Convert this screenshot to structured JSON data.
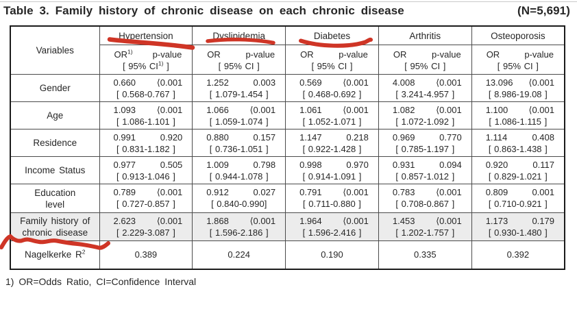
{
  "title": {
    "text": "Table 3. Family history of chronic disease on each chronic disease",
    "n_label": "(N=5,691)"
  },
  "colors": {
    "annotation_red": "#cf3526",
    "row_highlight": "#ececec"
  },
  "table": {
    "variables_header": "Variables",
    "diseases": [
      "Hypertension",
      "Dyslipidemia",
      "Diabetes",
      "Arthritis",
      "Osteoporosis"
    ],
    "subheader": {
      "or": "OR",
      "p": "p-value",
      "ci": "[ 95% CI",
      "ci_close": " ]",
      "sup_first": "1)"
    },
    "rows": [
      {
        "label": "Gender",
        "cells": [
          {
            "or": "0.660",
            "p": "⟨0.001",
            "ci": "[ 0.568-0.767 ]"
          },
          {
            "or": "1.252",
            "p": "0.003",
            "ci": "[ 1.079-1.454 ]"
          },
          {
            "or": "0.569",
            "p": "⟨0.001",
            "ci": "[ 0.468-0.692 ]"
          },
          {
            "or": "4.008",
            "p": "⟨0.001",
            "ci": "[ 3.241-4.957 ]"
          },
          {
            "or": "13.096",
            "p": "⟨0.001",
            "ci": "[ 8.986-19.08 ]"
          }
        ]
      },
      {
        "label": "Age",
        "cells": [
          {
            "or": "1.093",
            "p": "⟨0.001",
            "ci": "[ 1.086-1.101 ]"
          },
          {
            "or": "1.066",
            "p": "⟨0.001",
            "ci": "[ 1.059-1.074 ]"
          },
          {
            "or": "1.061",
            "p": "⟨0.001",
            "ci": "[ 1.052-1.071 ]"
          },
          {
            "or": "1.082",
            "p": "⟨0.001",
            "ci": "[ 1.072-1.092 ]"
          },
          {
            "or": "1.100",
            "p": "⟨0.001",
            "ci": "[ 1.086-1.115 ]"
          }
        ]
      },
      {
        "label": "Residence",
        "cells": [
          {
            "or": "0.991",
            "p": "0.920",
            "ci": "[ 0.831-1.182 ]"
          },
          {
            "or": "0.880",
            "p": "0.157",
            "ci": "[ 0.736-1.051 ]"
          },
          {
            "or": "1.147",
            "p": "0.218",
            "ci": "[ 0.922-1.428 ]"
          },
          {
            "or": "0.969",
            "p": "0.770",
            "ci": "[ 0.785-1.197 ]"
          },
          {
            "or": "1.114",
            "p": "0.408",
            "ci": "[ 0.863-1.438 ]"
          }
        ]
      },
      {
        "label": "Income Status",
        "cells": [
          {
            "or": "0.977",
            "p": "0.505",
            "ci": "[ 0.913-1.046 ]"
          },
          {
            "or": "1.009",
            "p": "0.798",
            "ci": "[ 0.944-1.078 ]"
          },
          {
            "or": "0.998",
            "p": "0.970",
            "ci": "[ 0.914-1.091 ]"
          },
          {
            "or": "0.931",
            "p": "0.094",
            "ci": "[ 0.857-1.012 ]"
          },
          {
            "or": "0.920",
            "p": "0.117",
            "ci": "[ 0.829-1.021 ]"
          }
        ]
      },
      {
        "label": "Education\nlevel",
        "cells": [
          {
            "or": "0.789",
            "p": "⟨0.001",
            "ci": "[ 0.727-0.857 ]"
          },
          {
            "or": "0.912",
            "p": "0.027",
            "ci": "[ 0.840-0.990]"
          },
          {
            "or": "0.791",
            "p": "⟨0.001",
            "ci": "[ 0.711-0.880 ]"
          },
          {
            "or": "0.783",
            "p": "⟨0.001",
            "ci": "[ 0.708-0.867 ]"
          },
          {
            "or": "0.809",
            "p": "0.001",
            "ci": "[ 0.710-0.921 ]"
          }
        ]
      },
      {
        "label": "Family history of\nchronic disease",
        "shaded": true,
        "cells": [
          {
            "or": "2.623",
            "p": "⟨0.001",
            "ci": "[ 2.229-3.087 ]"
          },
          {
            "or": "1.868",
            "p": "⟨0.001",
            "ci": "[ 1.596-2.186 ]"
          },
          {
            "or": "1.964",
            "p": "⟨0.001",
            "ci": "[ 1.596-2.416 ]"
          },
          {
            "or": "1.453",
            "p": "⟨0.001",
            "ci": "[ 1.202-1.757 ]"
          },
          {
            "or": "1.173",
            "p": "0.179",
            "ci": "[ 0.930-1.480 ]"
          }
        ]
      }
    ],
    "nagelkerke": {
      "label": "Nagelkerke R",
      "sup": "2",
      "values": [
        "0.389",
        "0.224",
        "0.190",
        "0.335",
        "0.392"
      ]
    }
  },
  "footnote": "1) OR=Odds Ratio, CI=Confidence Interval",
  "annotations": [
    {
      "name": "red-underline-hypertension"
    },
    {
      "name": "red-underline-dyslipidemia"
    },
    {
      "name": "red-underline-diabetes"
    },
    {
      "name": "red-squiggle-family-history"
    }
  ]
}
